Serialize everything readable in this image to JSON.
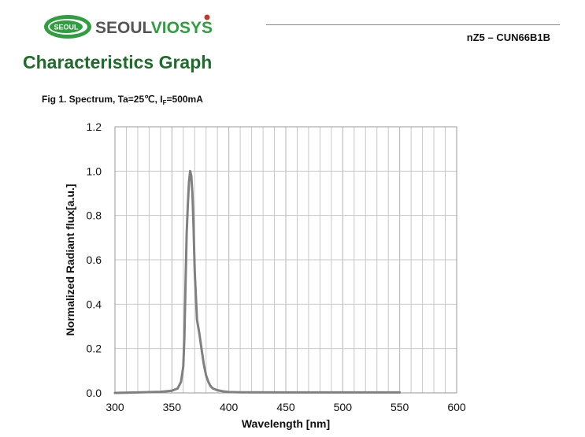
{
  "header": {
    "logo_badge": "SEOUL",
    "logo_text_prefix": "SEOUL",
    "logo_text_suffix": "VIOSYS",
    "doc_id": "nZ5 – CUN66B1B"
  },
  "section_title": "Characteristics Graph",
  "figure": {
    "caption_prefix": "Fig 1. Spectrum, Ta=25℃, I",
    "caption_sub": "F",
    "caption_suffix": "=500mA"
  },
  "colors": {
    "brand_green": "#1e6b2a",
    "logo_green": "#2e9e3e",
    "logo_grey": "#555555",
    "curve": "#808080",
    "grid": "#c8c8c8"
  },
  "chart_data": {
    "type": "line",
    "title": "",
    "xlabel": "Wavelength [nm]",
    "ylabel": "Normalized Radiant flux[a.u.]",
    "xlim": [
      300,
      600
    ],
    "ylim": [
      0,
      1.2
    ],
    "x_ticks": [
      300,
      350,
      400,
      450,
      500,
      550,
      600
    ],
    "y_ticks": [
      0.0,
      0.2,
      0.4,
      0.6,
      0.8,
      1.0,
      1.2
    ],
    "x_tick_labels": [
      "300",
      "350",
      "400",
      "450",
      "500",
      "550",
      "600"
    ],
    "y_tick_labels": [
      "0.0",
      "0.2",
      "0.4",
      "0.6",
      "0.8",
      "1.0",
      "1.2"
    ],
    "x_minor_step": 10,
    "grid": true,
    "series": [
      {
        "x": [
          300,
          320,
          340,
          350,
          355,
          358,
          360,
          361,
          362,
          363,
          364,
          365,
          366,
          367,
          368,
          369,
          370,
          372,
          374,
          376,
          378,
          380,
          382,
          384,
          386,
          390,
          395,
          400,
          410,
          450,
          500,
          550
        ],
        "y": [
          0.0,
          0.002,
          0.005,
          0.01,
          0.02,
          0.05,
          0.12,
          0.25,
          0.5,
          0.72,
          0.85,
          0.95,
          1.0,
          0.98,
          0.9,
          0.75,
          0.55,
          0.33,
          0.27,
          0.2,
          0.13,
          0.08,
          0.05,
          0.03,
          0.02,
          0.012,
          0.007,
          0.004,
          0.003,
          0.002,
          0.002,
          0.002
        ]
      }
    ]
  }
}
